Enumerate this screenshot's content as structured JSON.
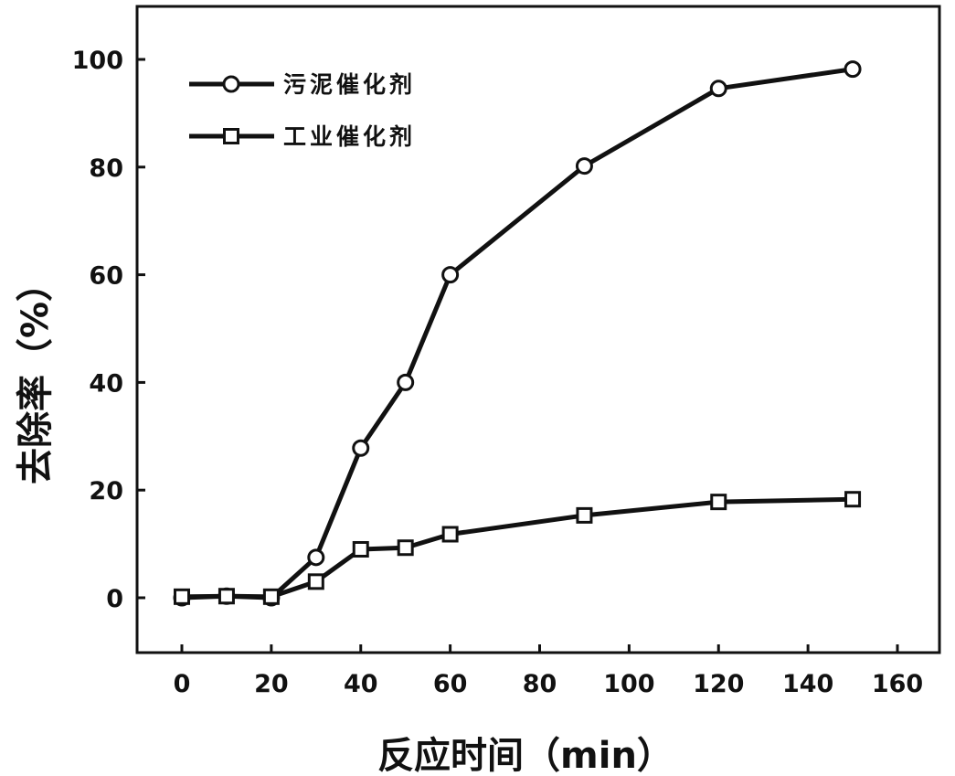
{
  "chart_data": {
    "type": "line",
    "xlabel": "反应时间（min）",
    "ylabel": "去除率（%）",
    "xlim": [
      -10,
      170
    ],
    "ylim": [
      -10,
      110
    ],
    "xticks": [
      0,
      20,
      40,
      60,
      80,
      100,
      120,
      140,
      160
    ],
    "yticks": [
      0,
      20,
      40,
      60,
      80,
      100
    ],
    "grid": false,
    "legend_position": "top-left",
    "series": [
      {
        "name": "污泥催化剂",
        "marker": "circle",
        "color": "#111111",
        "x": [
          0,
          10,
          20,
          30,
          40,
          50,
          60,
          90,
          120,
          150
        ],
        "y": [
          0,
          0.3,
          0,
          7.5,
          27.8,
          40,
          60,
          80.2,
          94.6,
          98.2
        ]
      },
      {
        "name": "工业催化剂",
        "marker": "square",
        "color": "#111111",
        "x": [
          0,
          10,
          20,
          30,
          40,
          50,
          60,
          90,
          120,
          150
        ],
        "y": [
          0.2,
          0.3,
          0.2,
          3,
          9,
          9.3,
          11.8,
          15.3,
          17.8,
          18.3
        ]
      }
    ]
  }
}
